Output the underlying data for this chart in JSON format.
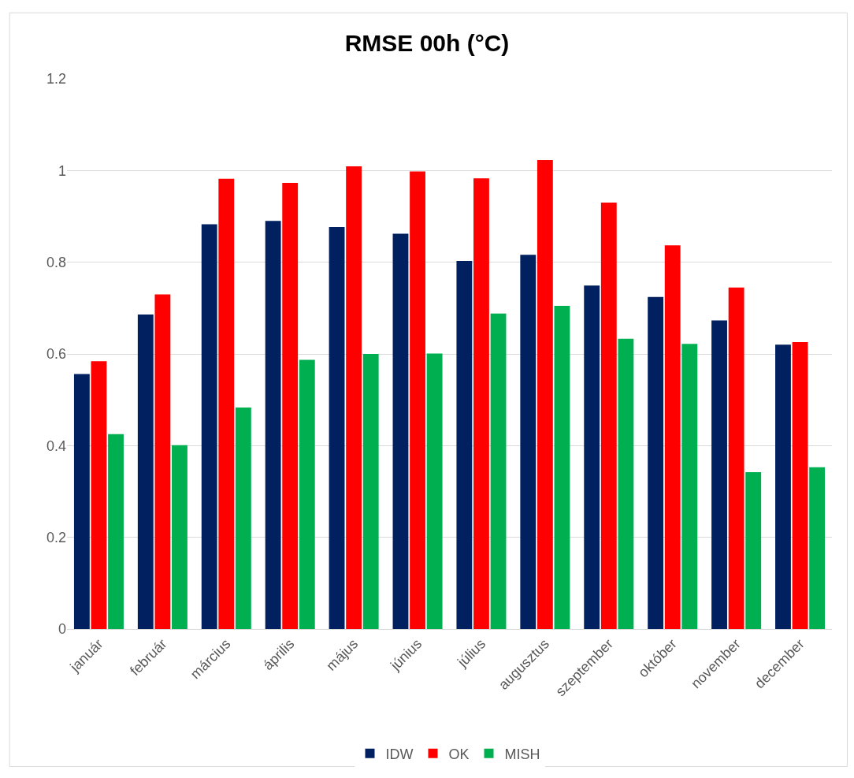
{
  "chart_data": {
    "type": "bar",
    "title": "RMSE 00h (°C)",
    "categories": [
      "január",
      "február",
      "március",
      "április",
      "május",
      "június",
      "július",
      "augusztus",
      "szeptember",
      "október",
      "november",
      "december"
    ],
    "series": [
      {
        "name": "IDW",
        "color": "#002060",
        "values": [
          0.556,
          0.686,
          0.883,
          0.89,
          0.877,
          0.862,
          0.803,
          0.816,
          0.749,
          0.724,
          0.673,
          0.62
        ]
      },
      {
        "name": "OK",
        "color": "#ff0000",
        "values": [
          0.584,
          0.73,
          0.982,
          0.973,
          1.009,
          0.998,
          0.983,
          1.023,
          0.93,
          0.837,
          0.745,
          0.626
        ]
      },
      {
        "name": "MISH",
        "color": "#00b050",
        "values": [
          0.425,
          0.401,
          0.483,
          0.587,
          0.6,
          0.601,
          0.688,
          0.705,
          0.633,
          0.622,
          0.342,
          0.353
        ]
      }
    ],
    "ylim": [
      0,
      1.2
    ],
    "yticks": [
      0,
      0.2,
      0.4,
      0.6,
      0.8,
      1,
      1.2
    ],
    "grid": "y",
    "legend": "bottom"
  }
}
